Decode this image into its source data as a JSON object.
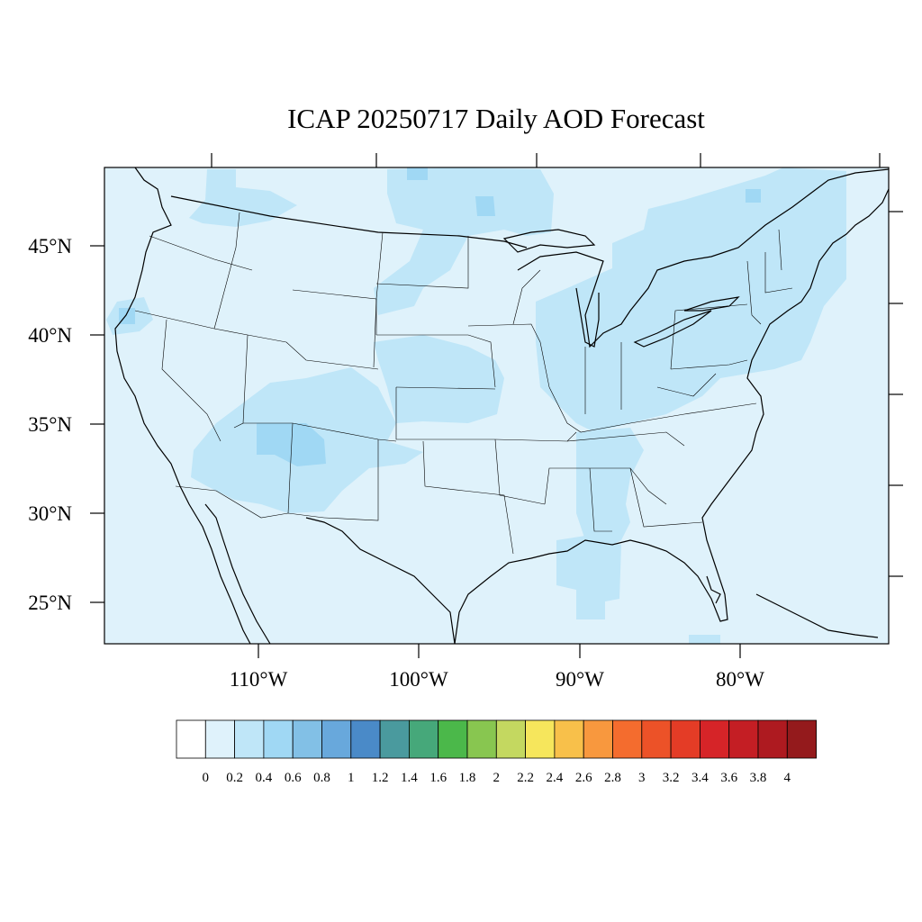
{
  "title": "ICAP 20250717 Daily AOD Forecast",
  "map": {
    "background_color": "#dff2fb",
    "outline_color": "#000000",
    "lat_labels": [
      "45°N",
      "40°N",
      "35°N",
      "30°N",
      "25°N"
    ],
    "lon_labels": [
      "110°W",
      "100°W",
      "90°W",
      "80°W"
    ]
  },
  "colorbar": {
    "colors": [
      "#ffffff",
      "#dff2fb",
      "#bfe6f8",
      "#a0d8f4",
      "#82c0e6",
      "#68a8dc",
      "#4a8ac8",
      "#4a9a9e",
      "#46a87a",
      "#4bb84a",
      "#88c650",
      "#c4d860",
      "#f6e65c",
      "#f8c04a",
      "#f8983e",
      "#f46c2e",
      "#ec5228",
      "#e43c26",
      "#d62428",
      "#c41e24",
      "#ae1a20",
      "#941a1c"
    ],
    "labels": [
      "0",
      "0.2",
      "0.4",
      "0.6",
      "0.8",
      "1",
      "1.2",
      "1.4",
      "1.6",
      "1.8",
      "2",
      "2.2",
      "2.4",
      "2.6",
      "2.8",
      "3",
      "3.2",
      "3.4",
      "3.6",
      "3.8",
      "4"
    ]
  }
}
